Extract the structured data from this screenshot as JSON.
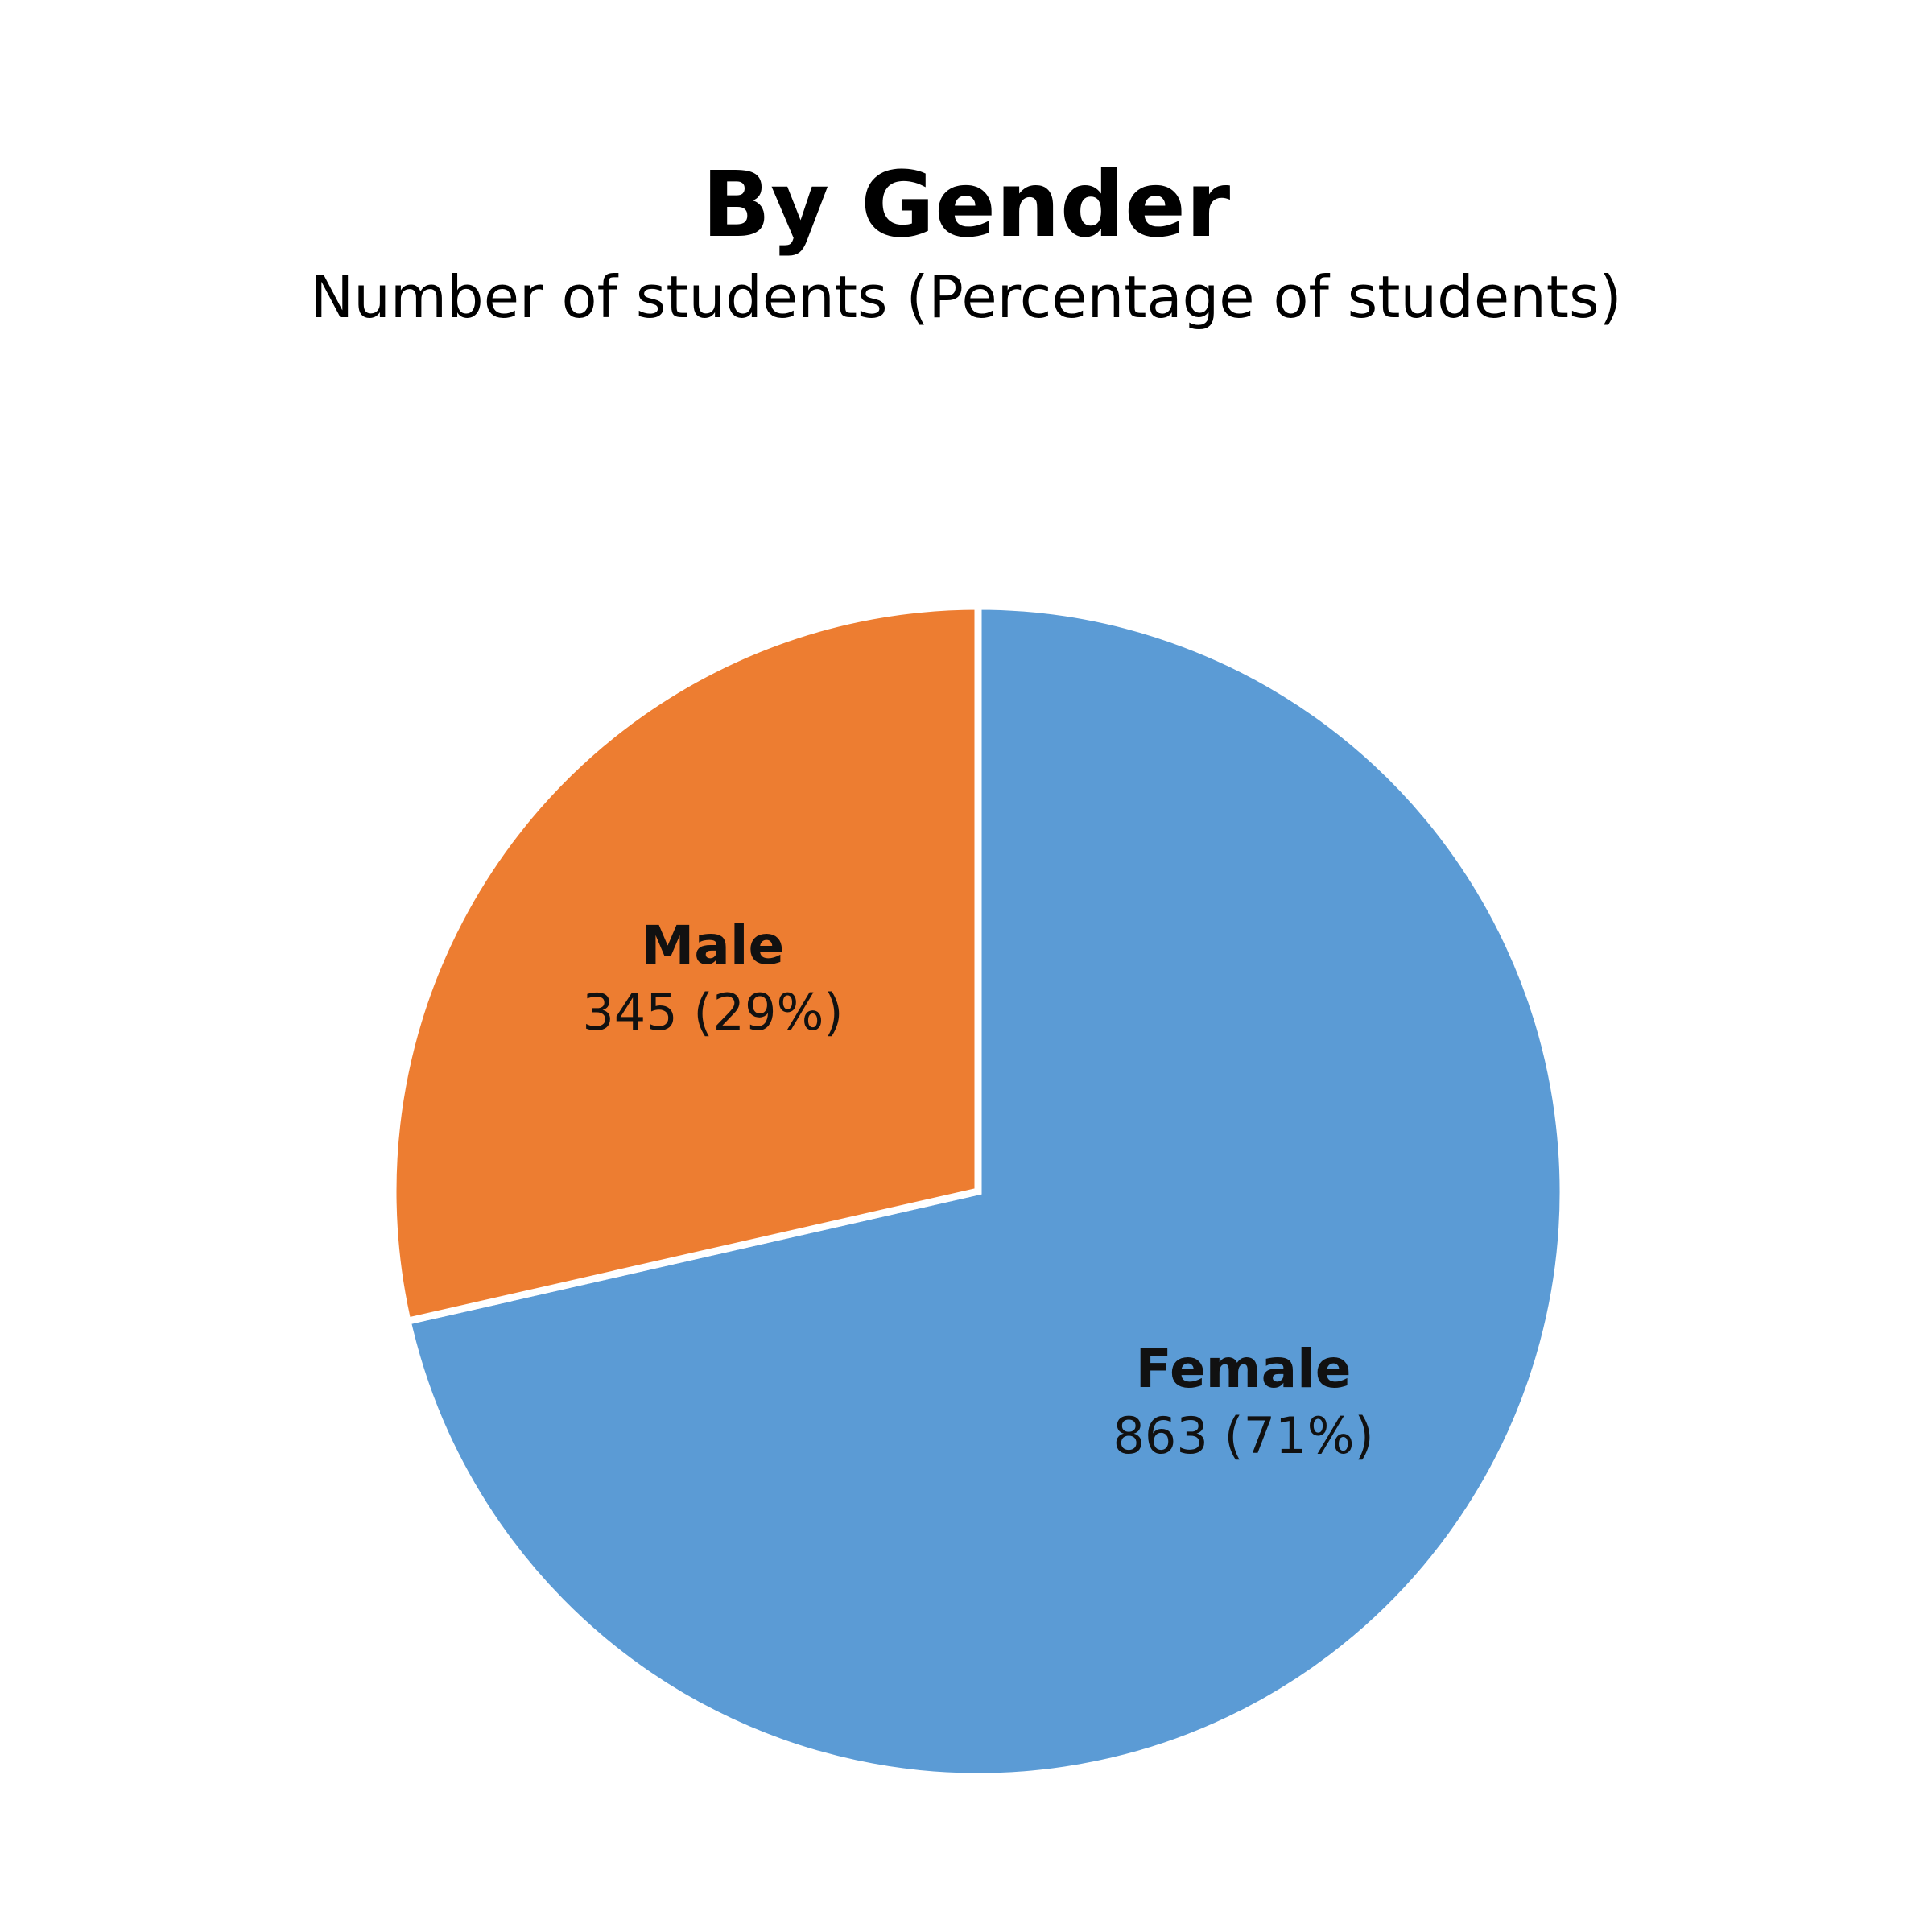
{
  "chart_data": {
    "type": "pie",
    "title": "By Gender",
    "subtitle": "Number of students (Percentage of students)",
    "slices": [
      {
        "label": "Female",
        "value": 863,
        "percent_label": "863 (71%)",
        "color": "#5B9BD5"
      },
      {
        "label": "Male",
        "value": 345,
        "percent_label": "345 (29%)",
        "color": "#ED7D31"
      }
    ],
    "start": "12 o'clock",
    "direction": "clockwise",
    "separator_color": "#FFFFFF"
  }
}
